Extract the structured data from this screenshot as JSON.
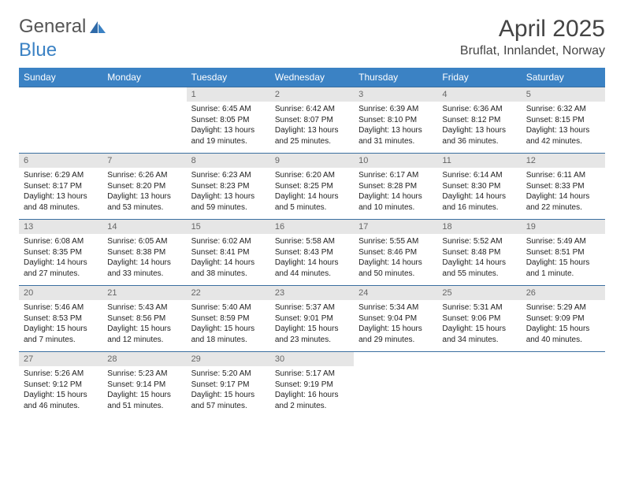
{
  "brand": {
    "name_a": "General",
    "name_b": "Blue"
  },
  "title": "April 2025",
  "location": "Bruflat, Innlandet, Norway",
  "colors": {
    "header_bg": "#3b82c4",
    "header_text": "#ffffff",
    "daynum_bg": "#e6e6e6",
    "daynum_text": "#666666",
    "body_text": "#222222",
    "rule": "#3b6fa0"
  },
  "day_names": [
    "Sunday",
    "Monday",
    "Tuesday",
    "Wednesday",
    "Thursday",
    "Friday",
    "Saturday"
  ],
  "weeks": [
    {
      "nums": [
        "",
        "",
        "1",
        "2",
        "3",
        "4",
        "5"
      ],
      "cells": [
        null,
        null,
        {
          "sunrise": "Sunrise: 6:45 AM",
          "sunset": "Sunset: 8:05 PM",
          "daylight": "Daylight: 13 hours and 19 minutes."
        },
        {
          "sunrise": "Sunrise: 6:42 AM",
          "sunset": "Sunset: 8:07 PM",
          "daylight": "Daylight: 13 hours and 25 minutes."
        },
        {
          "sunrise": "Sunrise: 6:39 AM",
          "sunset": "Sunset: 8:10 PM",
          "daylight": "Daylight: 13 hours and 31 minutes."
        },
        {
          "sunrise": "Sunrise: 6:36 AM",
          "sunset": "Sunset: 8:12 PM",
          "daylight": "Daylight: 13 hours and 36 minutes."
        },
        {
          "sunrise": "Sunrise: 6:32 AM",
          "sunset": "Sunset: 8:15 PM",
          "daylight": "Daylight: 13 hours and 42 minutes."
        }
      ]
    },
    {
      "nums": [
        "6",
        "7",
        "8",
        "9",
        "10",
        "11",
        "12"
      ],
      "cells": [
        {
          "sunrise": "Sunrise: 6:29 AM",
          "sunset": "Sunset: 8:17 PM",
          "daylight": "Daylight: 13 hours and 48 minutes."
        },
        {
          "sunrise": "Sunrise: 6:26 AM",
          "sunset": "Sunset: 8:20 PM",
          "daylight": "Daylight: 13 hours and 53 minutes."
        },
        {
          "sunrise": "Sunrise: 6:23 AM",
          "sunset": "Sunset: 8:23 PM",
          "daylight": "Daylight: 13 hours and 59 minutes."
        },
        {
          "sunrise": "Sunrise: 6:20 AM",
          "sunset": "Sunset: 8:25 PM",
          "daylight": "Daylight: 14 hours and 5 minutes."
        },
        {
          "sunrise": "Sunrise: 6:17 AM",
          "sunset": "Sunset: 8:28 PM",
          "daylight": "Daylight: 14 hours and 10 minutes."
        },
        {
          "sunrise": "Sunrise: 6:14 AM",
          "sunset": "Sunset: 8:30 PM",
          "daylight": "Daylight: 14 hours and 16 minutes."
        },
        {
          "sunrise": "Sunrise: 6:11 AM",
          "sunset": "Sunset: 8:33 PM",
          "daylight": "Daylight: 14 hours and 22 minutes."
        }
      ]
    },
    {
      "nums": [
        "13",
        "14",
        "15",
        "16",
        "17",
        "18",
        "19"
      ],
      "cells": [
        {
          "sunrise": "Sunrise: 6:08 AM",
          "sunset": "Sunset: 8:35 PM",
          "daylight": "Daylight: 14 hours and 27 minutes."
        },
        {
          "sunrise": "Sunrise: 6:05 AM",
          "sunset": "Sunset: 8:38 PM",
          "daylight": "Daylight: 14 hours and 33 minutes."
        },
        {
          "sunrise": "Sunrise: 6:02 AM",
          "sunset": "Sunset: 8:41 PM",
          "daylight": "Daylight: 14 hours and 38 minutes."
        },
        {
          "sunrise": "Sunrise: 5:58 AM",
          "sunset": "Sunset: 8:43 PM",
          "daylight": "Daylight: 14 hours and 44 minutes."
        },
        {
          "sunrise": "Sunrise: 5:55 AM",
          "sunset": "Sunset: 8:46 PM",
          "daylight": "Daylight: 14 hours and 50 minutes."
        },
        {
          "sunrise": "Sunrise: 5:52 AM",
          "sunset": "Sunset: 8:48 PM",
          "daylight": "Daylight: 14 hours and 55 minutes."
        },
        {
          "sunrise": "Sunrise: 5:49 AM",
          "sunset": "Sunset: 8:51 PM",
          "daylight": "Daylight: 15 hours and 1 minute."
        }
      ]
    },
    {
      "nums": [
        "20",
        "21",
        "22",
        "23",
        "24",
        "25",
        "26"
      ],
      "cells": [
        {
          "sunrise": "Sunrise: 5:46 AM",
          "sunset": "Sunset: 8:53 PM",
          "daylight": "Daylight: 15 hours and 7 minutes."
        },
        {
          "sunrise": "Sunrise: 5:43 AM",
          "sunset": "Sunset: 8:56 PM",
          "daylight": "Daylight: 15 hours and 12 minutes."
        },
        {
          "sunrise": "Sunrise: 5:40 AM",
          "sunset": "Sunset: 8:59 PM",
          "daylight": "Daylight: 15 hours and 18 minutes."
        },
        {
          "sunrise": "Sunrise: 5:37 AM",
          "sunset": "Sunset: 9:01 PM",
          "daylight": "Daylight: 15 hours and 23 minutes."
        },
        {
          "sunrise": "Sunrise: 5:34 AM",
          "sunset": "Sunset: 9:04 PM",
          "daylight": "Daylight: 15 hours and 29 minutes."
        },
        {
          "sunrise": "Sunrise: 5:31 AM",
          "sunset": "Sunset: 9:06 PM",
          "daylight": "Daylight: 15 hours and 34 minutes."
        },
        {
          "sunrise": "Sunrise: 5:29 AM",
          "sunset": "Sunset: 9:09 PM",
          "daylight": "Daylight: 15 hours and 40 minutes."
        }
      ]
    },
    {
      "nums": [
        "27",
        "28",
        "29",
        "30",
        "",
        "",
        ""
      ],
      "cells": [
        {
          "sunrise": "Sunrise: 5:26 AM",
          "sunset": "Sunset: 9:12 PM",
          "daylight": "Daylight: 15 hours and 46 minutes."
        },
        {
          "sunrise": "Sunrise: 5:23 AM",
          "sunset": "Sunset: 9:14 PM",
          "daylight": "Daylight: 15 hours and 51 minutes."
        },
        {
          "sunrise": "Sunrise: 5:20 AM",
          "sunset": "Sunset: 9:17 PM",
          "daylight": "Daylight: 15 hours and 57 minutes."
        },
        {
          "sunrise": "Sunrise: 5:17 AM",
          "sunset": "Sunset: 9:19 PM",
          "daylight": "Daylight: 16 hours and 2 minutes."
        },
        null,
        null,
        null
      ]
    }
  ]
}
